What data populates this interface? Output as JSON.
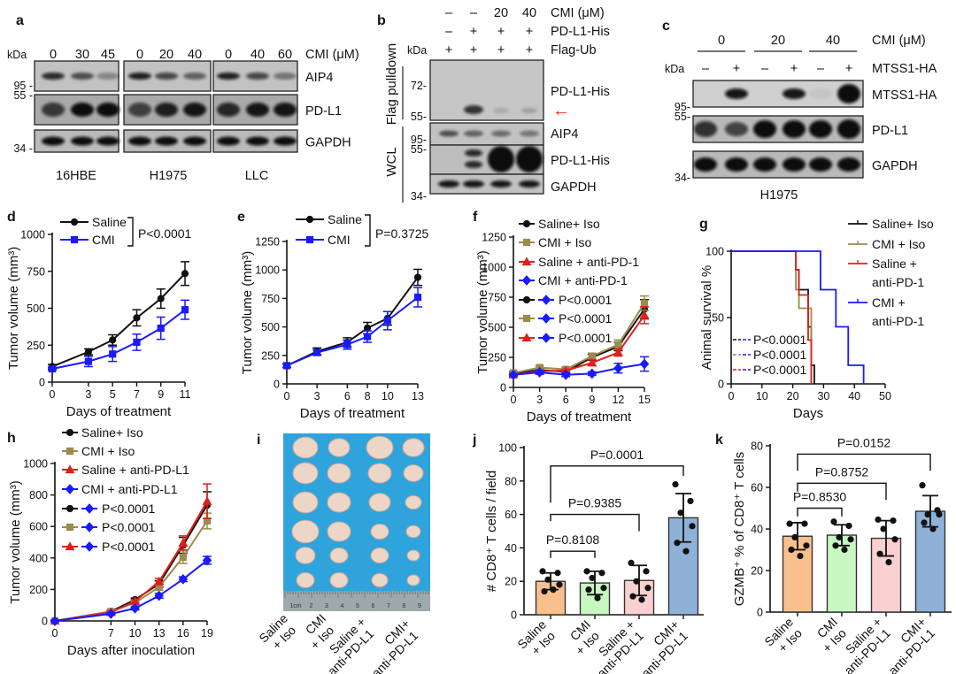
{
  "panel_labels": [
    "a",
    "b",
    "c",
    "d",
    "e",
    "f",
    "g",
    "h",
    "i",
    "j",
    "k"
  ],
  "colors": {
    "black": "#111111",
    "olive": "#9b8b4e",
    "red": "#e0201b",
    "blue": "#1a1aff",
    "arrow": "#ff2020",
    "photo_bg": "#2fa4dc"
  },
  "blot_a": {
    "kda": "kDa",
    "conc_label": "CMI (μM)",
    "concentrations": [
      [
        "0",
        "30",
        "45"
      ],
      [
        "0",
        "20",
        "40"
      ],
      [
        "0",
        "40",
        "60"
      ]
    ],
    "rows": [
      "AIP4",
      "PD-L1",
      "GAPDH"
    ],
    "markers": [
      "95 -",
      "55 -",
      "34 -"
    ],
    "cell_lines": [
      "16HBE",
      "H1975",
      "LLC"
    ]
  },
  "blot_b": {
    "kda": "kDa",
    "header_rows": [
      {
        "label": "CMI (μM)",
        "values": [
          "–",
          "–",
          "20",
          "40"
        ]
      },
      {
        "label": "PD-L1-His",
        "values": [
          "–",
          "+",
          "+",
          "+"
        ]
      },
      {
        "label": "Flag-Ub",
        "values": [
          "+",
          "+",
          "+",
          "+"
        ]
      }
    ],
    "section_labels": [
      "Flag pulldown",
      "WCL"
    ],
    "markers": [
      "72-",
      "55-",
      "95-",
      "55-",
      "34-"
    ],
    "rows": [
      "PD-L1-His",
      "AIP4",
      "PD-L1-His",
      "GAPDH"
    ],
    "arrow": "←"
  },
  "blot_c": {
    "kda": "kDa",
    "conc_label": "CMI (μM)",
    "groups": [
      "0",
      "20",
      "40"
    ],
    "mtss_label": "MTSS1-HA",
    "signs": [
      "–",
      "+",
      "–",
      "+",
      "–",
      "+"
    ],
    "rows": [
      "MTSS1-HA",
      "PD-L1",
      "GAPDH"
    ],
    "markers": [
      "95-",
      "55-",
      "34-"
    ],
    "cell_line": "H1975"
  },
  "panel_i": {
    "ruler_labels": [
      "1cm",
      "2",
      "3",
      "4",
      "5",
      "6",
      "7",
      "8",
      "9"
    ],
    "group_labels": [
      [
        "Saline",
        "+ Iso"
      ],
      [
        "CMI",
        "+ Iso"
      ],
      [
        "Saline +",
        "anti-PD-L1"
      ],
      [
        "CMI+",
        "anti-PD-L1"
      ]
    ]
  },
  "chart_data": [
    {
      "panel": "d",
      "type": "line",
      "xlabel": "Days of treatment",
      "ylabel": "Tumor volume (mm³)",
      "xlim": [
        0,
        11
      ],
      "ylim": [
        0,
        1000
      ],
      "xticks": [
        0,
        3,
        5,
        7,
        9,
        11
      ],
      "yticks": [
        0,
        250,
        500,
        750,
        1000
      ],
      "x": [
        0,
        3,
        5,
        7,
        9,
        11
      ],
      "series": [
        {
          "name": "Saline",
          "color": "#111111",
          "marker": "circle",
          "y": [
            105,
            205,
            285,
            435,
            565,
            735
          ],
          "err": [
            15,
            20,
            35,
            55,
            65,
            80
          ]
        },
        {
          "name": "CMI",
          "color": "#1a1aff",
          "marker": "square",
          "y": [
            90,
            140,
            190,
            270,
            365,
            490
          ],
          "err": [
            10,
            35,
            50,
            55,
            75,
            65
          ]
        }
      ],
      "p_values": [
        {
          "text": "P<0.0001"
        }
      ]
    },
    {
      "panel": "e",
      "type": "line",
      "xlabel": "Days of treatment",
      "ylabel": "Tumor volume (mm³)",
      "xlim": [
        0,
        13
      ],
      "ylim": [
        0,
        1250
      ],
      "xticks": [
        0,
        3,
        6,
        8,
        10,
        13
      ],
      "yticks": [
        0,
        250,
        500,
        750,
        1000,
        1250
      ],
      "x": [
        0,
        3,
        6,
        8,
        10,
        13
      ],
      "series": [
        {
          "name": "Saline",
          "color": "#111111",
          "marker": "circle",
          "y": [
            160,
            285,
            365,
            490,
            575,
            935
          ],
          "err": [
            15,
            30,
            40,
            50,
            60,
            70
          ]
        },
        {
          "name": "CMI",
          "color": "#1a1aff",
          "marker": "square",
          "y": [
            160,
            275,
            345,
            415,
            555,
            760
          ],
          "err": [
            15,
            25,
            40,
            50,
            80,
            85
          ]
        }
      ],
      "p_values": [
        {
          "text": "P=0.3725"
        }
      ]
    },
    {
      "panel": "f",
      "type": "line",
      "xlabel": "Days of treatment",
      "ylabel": "Tumor volume (mm³)",
      "xlim": [
        0,
        15
      ],
      "ylim": [
        0,
        1250
      ],
      "xticks": [
        0,
        3,
        6,
        9,
        12,
        15
      ],
      "yticks": [
        0,
        250,
        500,
        750,
        1000,
        1250
      ],
      "x": [
        0,
        3,
        6,
        9,
        12,
        15
      ],
      "series": [
        {
          "name": "Saline+ Iso",
          "color": "#111111",
          "marker": "circle",
          "y": [
            115,
            145,
            130,
            250,
            340,
            650
          ],
          "err": [
            15,
            15,
            15,
            25,
            35,
            80
          ]
        },
        {
          "name": "CMI + Iso",
          "color": "#9b8b4e",
          "marker": "square",
          "y": [
            120,
            165,
            150,
            260,
            355,
            700
          ],
          "err": [
            15,
            15,
            15,
            25,
            40,
            60
          ]
        },
        {
          "name": "Saline + anti-PD-1",
          "color": "#e0201b",
          "marker": "triangle",
          "y": [
            105,
            135,
            140,
            205,
            290,
            600
          ],
          "err": [
            10,
            10,
            10,
            25,
            30,
            70
          ]
        },
        {
          "name": "CMI + anti-PD-1",
          "color": "#1a1aff",
          "marker": "diamond",
          "y": [
            105,
            125,
            105,
            115,
            160,
            195
          ],
          "err": [
            10,
            15,
            15,
            15,
            40,
            60
          ]
        }
      ],
      "p_values": [
        {
          "pair": [
            0,
            3
          ],
          "text": "P<0.0001"
        },
        {
          "pair": [
            1,
            3
          ],
          "text": "P<0.0001"
        },
        {
          "pair": [
            2,
            3
          ],
          "text": "P<0.0001"
        }
      ]
    },
    {
      "panel": "g",
      "type": "survival",
      "xlabel": "Days",
      "ylabel": "Animal survival %",
      "xlim": [
        0,
        50
      ],
      "ylim": [
        0,
        100
      ],
      "xticks": [
        0,
        10,
        20,
        30,
        40,
        50
      ],
      "yticks": [
        0,
        50,
        100
      ],
      "series": [
        {
          "legend_lines": [
            "Saline+ Iso"
          ],
          "color": "#111111",
          "times": [
            0,
            21,
            22,
            25,
            26,
            27
          ],
          "survival": [
            100,
            86,
            71,
            43,
            14,
            0
          ]
        },
        {
          "legend_lines": [
            "CMI + Iso"
          ],
          "color": "#9b8b4e",
          "times": [
            0,
            21,
            22,
            26
          ],
          "survival": [
            100,
            71,
            57,
            0
          ]
        },
        {
          "legend_lines": [
            "Saline +",
            " anti-PD-1"
          ],
          "color": "#e0201b",
          "times": [
            0,
            21,
            22,
            25,
            26
          ],
          "survival": [
            100,
            86,
            67,
            33,
            0
          ]
        },
        {
          "legend_lines": [
            "CMI +",
            "anti-PD-1"
          ],
          "color": "#1a1aff",
          "times": [
            0,
            29,
            34,
            38,
            43
          ],
          "survival": [
            100,
            71,
            43,
            14,
            0
          ]
        }
      ],
      "p_values": [
        {
          "pair": [
            0,
            3
          ],
          "text": "P<0.0001"
        },
        {
          "pair": [
            1,
            3
          ],
          "text": "P<0.0001"
        },
        {
          "pair": [
            2,
            3
          ],
          "text": "P<0.0001"
        }
      ]
    },
    {
      "panel": "h",
      "type": "line",
      "xlabel": "Days after inoculation",
      "ylabel": "Tumor volume (mm³)",
      "xlim": [
        0,
        19
      ],
      "ylim": [
        0,
        1000
      ],
      "xticks": [
        0,
        7,
        10,
        13,
        16,
        19
      ],
      "yticks": [
        0,
        200,
        400,
        600,
        800,
        1000
      ],
      "x": [
        0,
        7,
        10,
        13,
        16,
        19
      ],
      "series": [
        {
          "name": "Saline+ Iso",
          "color": "#111111",
          "marker": "circle",
          "y": [
            0,
            60,
            135,
            235,
            480,
            735
          ],
          "err": [
            5,
            8,
            10,
            20,
            50,
            85
          ]
        },
        {
          "name": "CMI + Iso",
          "color": "#9b8b4e",
          "marker": "square",
          "y": [
            0,
            60,
            115,
            215,
            405,
            635
          ],
          "err": [
            5,
            8,
            10,
            20,
            40,
            50
          ]
        },
        {
          "name": "Saline + anti-PD-L1",
          "color": "#e0201b",
          "marker": "triangle",
          "y": [
            0,
            55,
            125,
            250,
            495,
            760
          ],
          "err": [
            5,
            8,
            10,
            20,
            45,
            110
          ]
        },
        {
          "name": "CMI + anti-PD-L1",
          "color": "#1a1aff",
          "marker": "diamond",
          "y": [
            0,
            45,
            80,
            160,
            265,
            385
          ],
          "err": [
            5,
            8,
            10,
            15,
            15,
            25
          ]
        }
      ],
      "p_values": [
        {
          "pair": [
            0,
            3
          ],
          "text": "P<0.0001"
        },
        {
          "pair": [
            1,
            3
          ],
          "text": "P<0.0001"
        },
        {
          "pair": [
            2,
            3
          ],
          "text": "P<0.0001"
        }
      ]
    },
    {
      "panel": "j",
      "type": "bar",
      "ylabel": "# CD8⁺ T cells / field",
      "ylim": [
        0,
        100
      ],
      "yticks": [
        0,
        20,
        40,
        60,
        80,
        100
      ],
      "categories": [
        [
          "Saline",
          "+ Iso"
        ],
        [
          "CMI",
          "+ Iso"
        ],
        [
          "Saline +",
          "anti-PD-L1"
        ],
        [
          "CMI+",
          "anti-PD-L1"
        ]
      ],
      "colors": [
        "#f8c08c",
        "#c8f7c2",
        "#fad0d0",
        "#8fb1d8"
      ],
      "values": [
        20,
        19,
        20.5,
        58
      ],
      "sd": [
        5,
        7,
        9,
        14.5
      ],
      "points": [
        [
          26,
          25,
          21,
          18,
          14,
          15
        ],
        [
          26,
          25,
          22,
          16,
          15,
          10
        ],
        [
          31,
          26,
          20,
          16,
          11,
          9
        ],
        [
          78,
          68,
          61,
          53,
          43,
          38
        ]
      ],
      "comparisons": [
        {
          "groups": [
            0,
            1
          ],
          "text": "P=0.8108"
        },
        {
          "groups": [
            0,
            2
          ],
          "text": "P=0.9385"
        },
        {
          "groups": [
            0,
            3
          ],
          "text": "P=0.0001"
        }
      ]
    },
    {
      "panel": "k",
      "type": "bar",
      "ylabel": "GZMB⁺ % of CD8⁺ T cells",
      "ylim": [
        0,
        80
      ],
      "yticks": [
        0,
        20,
        40,
        60,
        80
      ],
      "categories": [
        [
          "Saline",
          "+ Iso"
        ],
        [
          "CMI",
          "+ Iso"
        ],
        [
          "Saline +",
          "anti-PD-L1"
        ],
        [
          "CMI+",
          "anti-PD-L1"
        ]
      ],
      "colors": [
        "#f8c08c",
        "#c8f7c2",
        "#fad0d0",
        "#8fb1d8"
      ],
      "values": [
        36.5,
        37,
        35.5,
        48.5
      ],
      "sd": [
        6.5,
        5,
        8.5,
        7.5
      ],
      "points": [
        [
          42.5,
          42.5,
          36,
          32,
          30,
          27
        ],
        [
          43.5,
          41.5,
          36,
          35,
          32,
          30
        ],
        [
          44.5,
          44,
          40,
          35,
          28,
          24
        ],
        [
          61,
          49,
          47,
          47,
          43,
          40
        ]
      ],
      "comparisons": [
        {
          "groups": [
            0,
            1
          ],
          "text": "P=0.8530"
        },
        {
          "groups": [
            0,
            2
          ],
          "text": "P=0.8752"
        },
        {
          "groups": [
            0,
            3
          ],
          "text": "P=0.0152"
        }
      ]
    }
  ]
}
